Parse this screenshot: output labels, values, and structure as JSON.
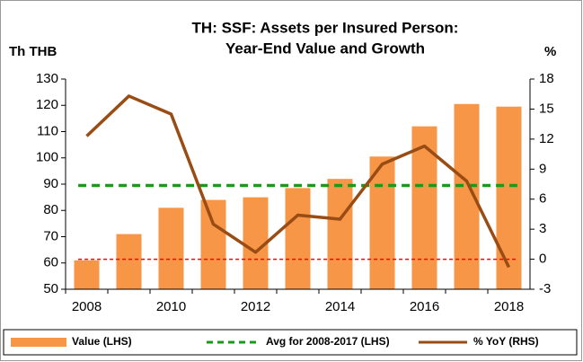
{
  "chart_data": {
    "type": "bar_line",
    "title": [
      "TH: SSF: Assets per Insured Person:",
      "Year-End Value and Growth"
    ],
    "y_label": "Th THB",
    "y2_label": "%",
    "categories": [
      "2008",
      null,
      "2010",
      null,
      "2012",
      null,
      "2014",
      null,
      "2016",
      null,
      "2018"
    ],
    "series": [
      {
        "name": "Value (LHS)",
        "color": "#f79646",
        "kind": "bar",
        "values": [
          61,
          71,
          81,
          84,
          85,
          88.5,
          92,
          100.5,
          112,
          120.5,
          119.5
        ]
      },
      {
        "name": "% YoY (RHS)",
        "color": "#994c14",
        "kind": "line",
        "axis": "y2",
        "values": [
          12.3,
          16.3,
          14.5,
          3.5,
          0.7,
          4.4,
          4.0,
          9.5,
          11.3,
          7.8,
          -0.8
        ]
      }
    ],
    "reference_lines": [
      {
        "name": "Avg for 2008-2017 (LHS)",
        "value": 89.5,
        "color": "#1a9a1a"
      }
    ],
    "y2_zero_line_color": "#ff0000",
    "ylim": [
      50,
      130
    ],
    "yticks": [
      50,
      60,
      70,
      80,
      90,
      100,
      110,
      120,
      130
    ],
    "y2lim": [
      -3,
      18
    ],
    "y2ticks": [
      -3,
      0,
      3,
      6,
      9,
      12,
      15,
      18
    ]
  }
}
